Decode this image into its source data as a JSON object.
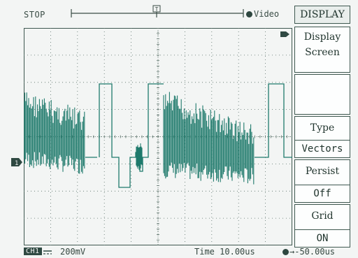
{
  "status": {
    "run_state": "STOP"
  },
  "trigger": {
    "source_label": "Video",
    "position_readout": "→-50.00us"
  },
  "menu": {
    "title": "DISPLAY",
    "items": [
      {
        "label": "Display",
        "sub": "Screen"
      },
      {
        "label": "",
        "sub": ""
      },
      {
        "label": "Type",
        "value": "Vectors"
      },
      {
        "label": "Persist",
        "value": "Off"
      },
      {
        "label": "Grid",
        "value": "ON"
      }
    ]
  },
  "channel": {
    "badge": "CH1",
    "volts_div": "200mV"
  },
  "timebase": {
    "label": "Time",
    "value": "10.00us"
  },
  "colors": {
    "trace": "#1f7a6c",
    "grid": "#5a7068",
    "frame": "#3f5850",
    "background": "#f3f5f4"
  },
  "icons": {
    "trigger_marker": "trigger-t-marker-icon",
    "channel_marker": "channel-1-marker-icon",
    "coupling": "dc-coupling-icon"
  }
}
